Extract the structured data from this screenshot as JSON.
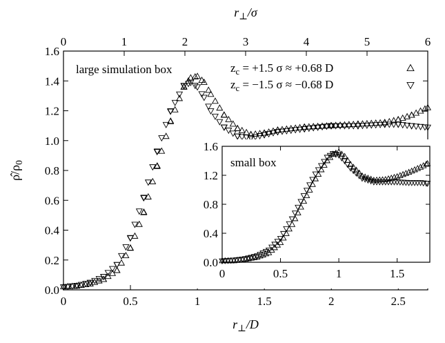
{
  "chart_data": [
    {
      "type": "scatter",
      "label": "large simulation box",
      "xlabel": "r_⊥/D",
      "x2label": "r_⊥/σ",
      "ylabel": "ρ̂/ρ_0",
      "xlim": [
        0,
        2.72
      ],
      "x2lim": [
        0,
        6
      ],
      "ylim": [
        0,
        1.6
      ],
      "xticks": [
        "0",
        "0.5",
        "1",
        "1.5",
        "2",
        "2.5"
      ],
      "x2ticks": [
        "0",
        "1",
        "2",
        "3",
        "4",
        "5",
        "6"
      ],
      "yticks": [
        "0.0",
        "0.2",
        "0.4",
        "0.6",
        "0.8",
        "1.0",
        "1.2",
        "1.4",
        "1.6"
      ],
      "legend_position": "top-right",
      "series": [
        {
          "name": "z_c = +1.5 σ ≈ +0.68 D",
          "marker": "triangle-up",
          "x": [
            0.0,
            0.1,
            0.2,
            0.3,
            0.4,
            0.5,
            0.6,
            0.7,
            0.8,
            0.9,
            0.95,
            1.0,
            1.05,
            1.1,
            1.2,
            1.3,
            1.4,
            1.5,
            1.6,
            1.8,
            2.0,
            2.2,
            2.4,
            2.5,
            2.6,
            2.72
          ],
          "y": [
            0.02,
            0.025,
            0.04,
            0.07,
            0.13,
            0.28,
            0.52,
            0.83,
            1.13,
            1.36,
            1.42,
            1.43,
            1.39,
            1.31,
            1.17,
            1.08,
            1.04,
            1.05,
            1.07,
            1.09,
            1.1,
            1.11,
            1.12,
            1.14,
            1.17,
            1.22
          ]
        },
        {
          "name": "z_c = −1.5 σ ≈ −0.68 D",
          "marker": "triangle-down",
          "x": [
            0.0,
            0.1,
            0.2,
            0.3,
            0.4,
            0.5,
            0.6,
            0.7,
            0.8,
            0.9,
            0.95,
            1.0,
            1.05,
            1.1,
            1.2,
            1.3,
            1.4,
            1.5,
            1.6,
            1.8,
            2.0,
            2.2,
            2.4,
            2.5,
            2.6,
            2.72
          ],
          "y": [
            0.02,
            0.03,
            0.05,
            0.09,
            0.17,
            0.35,
            0.62,
            0.93,
            1.2,
            1.37,
            1.39,
            1.36,
            1.29,
            1.2,
            1.09,
            1.03,
            1.02,
            1.04,
            1.06,
            1.08,
            1.1,
            1.1,
            1.11,
            1.11,
            1.1,
            1.09
          ]
        }
      ]
    },
    {
      "type": "scatter",
      "label": "small box",
      "inset": true,
      "xlim": [
        0,
        1.78
      ],
      "ylim": [
        0,
        1.6
      ],
      "xticks": [
        "0",
        "0.5",
        "1",
        "1.5"
      ],
      "yticks": [
        "0.0",
        "0.4",
        "0.8",
        "1.2",
        "1.6"
      ],
      "series": [
        {
          "marker": "triangle-up",
          "x": [
            0.0,
            0.1,
            0.2,
            0.3,
            0.4,
            0.5,
            0.6,
            0.7,
            0.8,
            0.9,
            0.95,
            1.0,
            1.05,
            1.1,
            1.2,
            1.3,
            1.4,
            1.5,
            1.6,
            1.7,
            1.76
          ],
          "y": [
            0.02,
            0.02,
            0.04,
            0.07,
            0.13,
            0.27,
            0.52,
            0.84,
            1.15,
            1.4,
            1.49,
            1.52,
            1.46,
            1.35,
            1.19,
            1.13,
            1.14,
            1.18,
            1.24,
            1.31,
            1.36
          ]
        },
        {
          "marker": "triangle-down",
          "x": [
            0.0,
            0.1,
            0.2,
            0.3,
            0.4,
            0.5,
            0.6,
            0.7,
            0.8,
            0.9,
            0.95,
            1.0,
            1.05,
            1.1,
            1.2,
            1.3,
            1.4,
            1.5,
            1.6,
            1.7,
            1.76
          ],
          "y": [
            0.02,
            0.03,
            0.05,
            0.09,
            0.17,
            0.33,
            0.6,
            0.92,
            1.22,
            1.45,
            1.5,
            1.48,
            1.4,
            1.3,
            1.16,
            1.11,
            1.11,
            1.11,
            1.1,
            1.1,
            1.09
          ]
        }
      ]
    }
  ]
}
